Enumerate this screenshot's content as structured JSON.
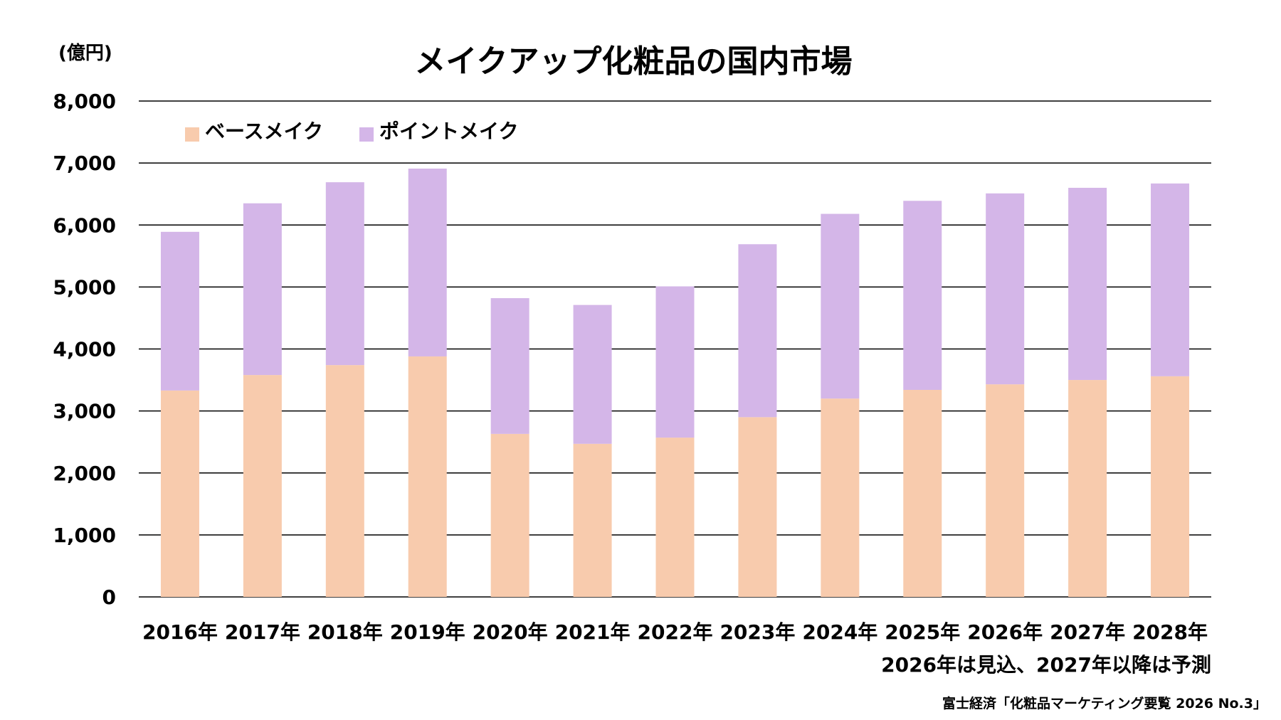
{
  "chart_data": {
    "type": "bar",
    "stacked": true,
    "title": "メイクアップ化粧品の国内市場",
    "unit_label": "(億円)",
    "categories": [
      "2016年",
      "2017年",
      "2018年",
      "2019年",
      "2020年",
      "2021年",
      "2022年",
      "2023年",
      "2024年",
      "2025年",
      "2026年",
      "2027年",
      "2028年"
    ],
    "series": [
      {
        "name": "ベースメイク",
        "color": "#F8CBAD",
        "values": [
          3330,
          3580,
          3740,
          3880,
          2630,
          2470,
          2570,
          2900,
          3200,
          3340,
          3430,
          3500,
          3560
        ]
      },
      {
        "name": "ポイントメイク",
        "color": "#D4B6E8",
        "values": [
          2560,
          2770,
          2950,
          3030,
          2190,
          2240,
          2440,
          2790,
          2980,
          3050,
          3080,
          3100,
          3110
        ]
      }
    ],
    "ylim": [
      0,
      8000
    ],
    "yticks": [
      "0",
      "1,000",
      "2,000",
      "3,000",
      "4,000",
      "5,000",
      "6,000",
      "7,000",
      "8,000"
    ],
    "grid": true,
    "legend_position": "top-left"
  },
  "notes": {
    "forecast": "2026年は見込、2027年以降は予測",
    "source": "富士経済「化粧品マーケティング要覧 2026 No.3」"
  }
}
